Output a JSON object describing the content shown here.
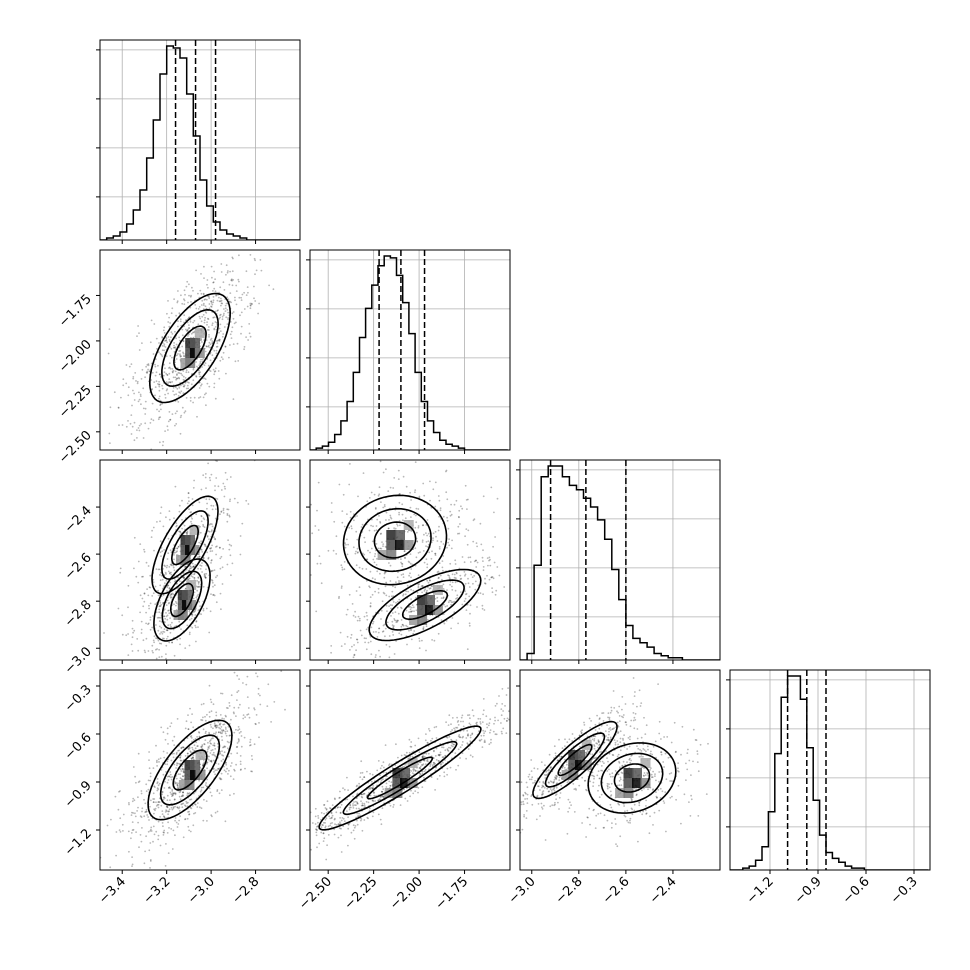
{
  "chart_data": {
    "type": "corner",
    "parameters": 4,
    "ranges": [
      [
        -3.5,
        -2.6
      ],
      [
        -2.6,
        -1.5
      ],
      [
        -3.05,
        -2.2
      ],
      [
        -1.45,
        -0.2
      ]
    ],
    "ticks": [
      [
        "-3.4",
        "-3.2",
        "-3.0",
        "-2.8"
      ],
      [
        "-2.50",
        "-2.25",
        "-2.00",
        "-1.75"
      ],
      [
        "-3.0",
        "-2.8",
        "-2.6",
        "-2.4"
      ],
      [
        "-1.2",
        "-0.9",
        "-0.6",
        "-0.3"
      ]
    ],
    "tick_values": [
      [
        -3.4,
        -3.2,
        -3.0,
        -2.8
      ],
      [
        -2.5,
        -2.25,
        -2.0,
        -1.75
      ],
      [
        -3.0,
        -2.8,
        -2.6,
        -2.4
      ],
      [
        -1.2,
        -0.9,
        -0.6,
        -0.3
      ]
    ],
    "quantiles": [
      [
        -3.16,
        -3.07,
        -2.98
      ],
      [
        -2.22,
        -2.1,
        -1.97
      ],
      [
        -2.92,
        -2.77,
        -2.6
      ],
      [
        -1.09,
        -0.97,
        -0.85
      ]
    ],
    "histograms": [
      {
        "edges_start": -3.5,
        "bin_width": 0.03,
        "counts": [
          0,
          1,
          2,
          4,
          8,
          15,
          25,
          41,
          60,
          83,
          97,
          96,
          91,
          73,
          52,
          30,
          17,
          9,
          5,
          3,
          2,
          1,
          0,
          0,
          0,
          0,
          0,
          0,
          0,
          0
        ]
      },
      {
        "edges_start": -2.6,
        "bin_width": 0.034,
        "counts": [
          0,
          1,
          2,
          4,
          8,
          15,
          25,
          40,
          58,
          73,
          85,
          95,
          100,
          99,
          90,
          76,
          60,
          40,
          25,
          15,
          9,
          5,
          3,
          2,
          1,
          0,
          0,
          0,
          0,
          0,
          0,
          0
        ]
      },
      {
        "edges_start": -3.05,
        "bin_width": 0.03,
        "counts": [
          0,
          3,
          44,
          85,
          90,
          90,
          85,
          81,
          79,
          75,
          71,
          65,
          56,
          42,
          28,
          16,
          10,
          8,
          6,
          3,
          2,
          1,
          1,
          0,
          0,
          0,
          0,
          0,
          0
        ]
      },
      {
        "edges_start": -1.45,
        "bin_width": 0.04,
        "counts": [
          0,
          0,
          1,
          2,
          5,
          12,
          30,
          60,
          89,
          100,
          100,
          88,
          63,
          36,
          18,
          9,
          6,
          4,
          2,
          1,
          1,
          0,
          0,
          0,
          0,
          0,
          0,
          0,
          0,
          0,
          0
        ]
      }
    ],
    "grid": true,
    "title": "",
    "xlabel": "",
    "ylabel": ""
  }
}
